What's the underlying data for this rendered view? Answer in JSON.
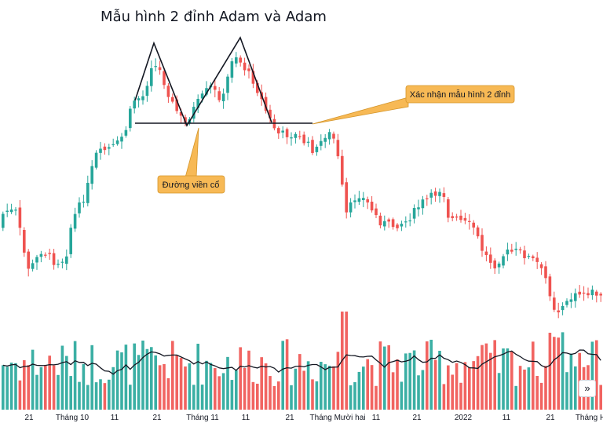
{
  "chart_data": {
    "type": "candlestick",
    "title": "Mẫu hình 2 đỉnh Adam và Adam",
    "x_tick_labels": [
      "21",
      "Tháng 10",
      "11",
      "21",
      "Tháng 11",
      "11",
      "21",
      "Tháng Mười hai",
      "11",
      "21",
      "2022",
      "11",
      "21",
      "Tháng H"
    ],
    "annotations": {
      "neckline": "Đường viền cổ",
      "confirmation": "Xác nhận mẫu hình 2 đỉnh"
    },
    "colors": {
      "up": "#26a69a",
      "down": "#ef5350",
      "ma_line": "#131722",
      "callout": "#f7b955"
    },
    "grid": false,
    "legend": "none"
  },
  "ui": {
    "scroll_icon": "»"
  }
}
